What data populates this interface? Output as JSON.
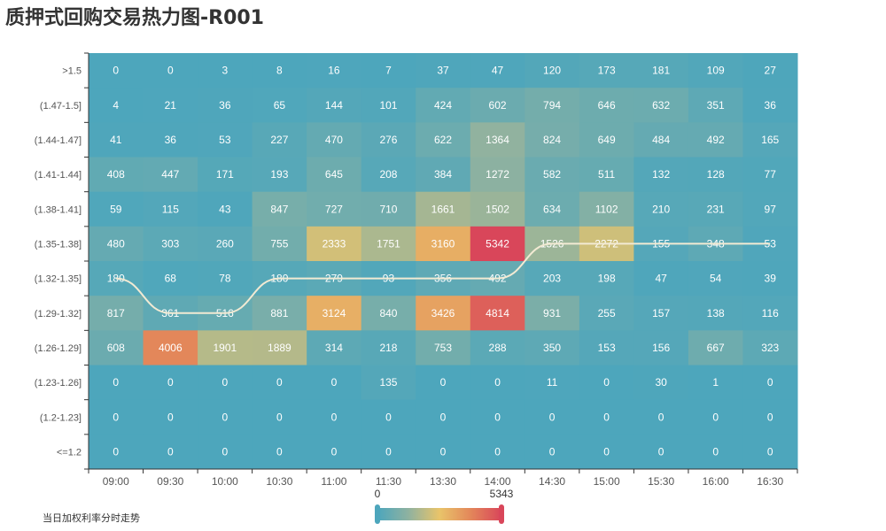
{
  "title": "质押式回购交易热力图-R001",
  "legend_label": "当日加权利率分时走势",
  "chart_data": {
    "type": "heatmap",
    "title": "质押式回购交易热力图-R001",
    "x_categories": [
      "09:00",
      "09:30",
      "10:00",
      "10:30",
      "11:00",
      "11:30",
      "13:30",
      "14:00",
      "14:30",
      "15:00",
      "15:30",
      "16:00",
      "16:30"
    ],
    "y_categories": [
      ">1.5",
      "(1.47-1.5]",
      "(1.44-1.47]",
      "(1.41-1.44]",
      "(1.38-1.41]",
      "(1.35-1.38]",
      "(1.32-1.35]",
      "(1.29-1.32]",
      "(1.26-1.29]",
      "(1.23-1.26]",
      "(1.2-1.23]",
      "<=1.2"
    ],
    "values": [
      [
        0,
        0,
        3,
        8,
        16,
        7,
        37,
        47,
        120,
        173,
        181,
        109,
        27
      ],
      [
        4,
        21,
        36,
        65,
        144,
        101,
        424,
        602,
        794,
        646,
        632,
        351,
        36
      ],
      [
        41,
        36,
        53,
        227,
        470,
        276,
        622,
        1364,
        824,
        649,
        484,
        492,
        165
      ],
      [
        408,
        447,
        171,
        193,
        645,
        208,
        384,
        1272,
        582,
        511,
        132,
        128,
        77
      ],
      [
        59,
        115,
        43,
        847,
        727,
        710,
        1661,
        1502,
        634,
        1102,
        210,
        231,
        97
      ],
      [
        480,
        303,
        260,
        755,
        2333,
        1751,
        3160,
        5342,
        1526,
        2272,
        155,
        348,
        53
      ],
      [
        180,
        68,
        78,
        180,
        279,
        93,
        356,
        492,
        203,
        198,
        47,
        54,
        39
      ],
      [
        817,
        361,
        516,
        881,
        3124,
        840,
        3426,
        4814,
        931,
        255,
        157,
        138,
        116
      ],
      [
        608,
        4006,
        1901,
        1889,
        314,
        218,
        753,
        288,
        350,
        153,
        156,
        667,
        323
      ],
      [
        0,
        0,
        0,
        0,
        0,
        135,
        0,
        0,
        11,
        0,
        30,
        1,
        0
      ],
      [
        0,
        0,
        0,
        0,
        0,
        0,
        0,
        0,
        0,
        0,
        0,
        0,
        0
      ],
      [
        0,
        0,
        0,
        0,
        0,
        0,
        0,
        0,
        0,
        0,
        0,
        0,
        0
      ]
    ],
    "visual_map": {
      "min": 0,
      "max": 5343,
      "min_label": "0",
      "max_label": "5343",
      "colors": [
        "#4da6bc",
        "#8fb2a0",
        "#e9c46a",
        "#e3875a",
        "#d9465a"
      ]
    },
    "trend_line": {
      "name": "当日加权利率分时走势",
      "y_band": [
        "(1.32-1.35]",
        "(1.29-1.32]",
        "(1.29-1.32]",
        "(1.32-1.35]",
        "(1.32-1.35]",
        "(1.32-1.35]",
        "(1.32-1.35]",
        "(1.32-1.35]",
        "(1.35-1.38]",
        "(1.35-1.38]",
        "(1.35-1.38]",
        "(1.35-1.38]",
        "(1.35-1.38]"
      ],
      "color": "#f2ead3"
    },
    "cell_label_color": "#ffffff",
    "axis_text_color": "#555555"
  }
}
